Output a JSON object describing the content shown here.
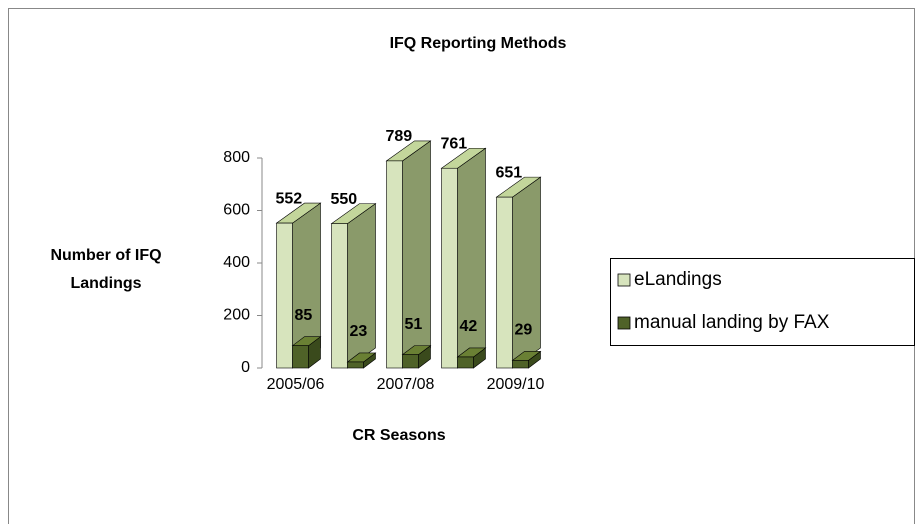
{
  "chart_data": {
    "type": "bar3d",
    "title": "IFQ Reporting Methods",
    "y_label": [
      "Number of IFQ",
      "Landings"
    ],
    "x_label": "CR Seasons",
    "categories": [
      "2005/06",
      null,
      "2007/08",
      null,
      "2009/10"
    ],
    "series": [
      {
        "name": "eLandings",
        "color": "#d7e4bd",
        "values": [
          552,
          550,
          789,
          761,
          651
        ]
      },
      {
        "name": "manual landing by FAX",
        "color": "#4f6228",
        "values": [
          85,
          23,
          51,
          42,
          29
        ]
      }
    ],
    "ylim": [
      0,
      800
    ],
    "yticks": [
      0,
      200,
      400,
      600,
      800
    ],
    "legend": "right"
  }
}
